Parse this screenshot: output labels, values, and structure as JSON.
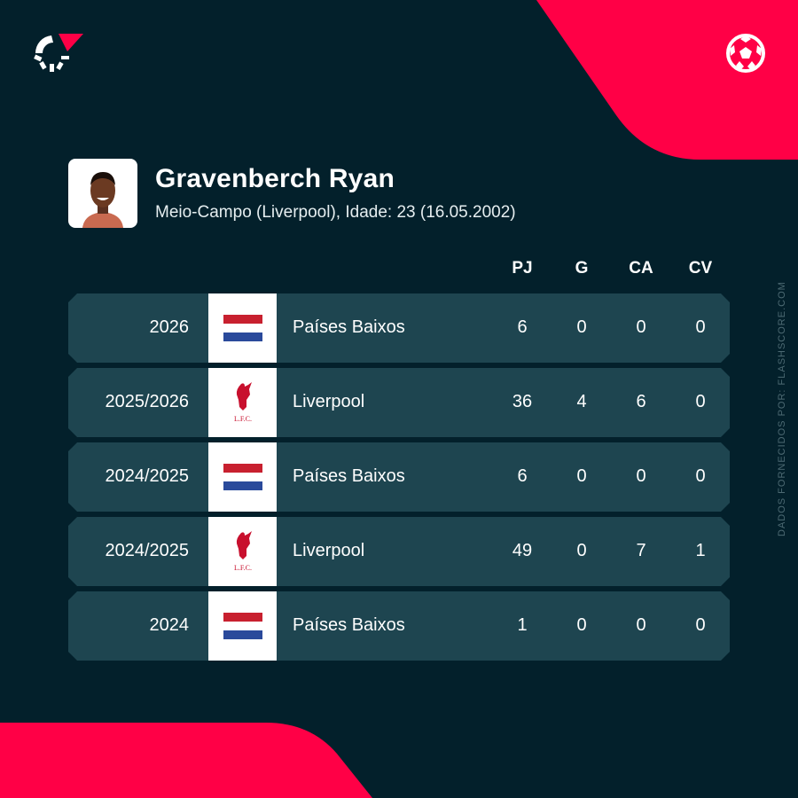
{
  "brand": {
    "accent": "#ff0046",
    "background": "#03202b",
    "row": "#1e4550"
  },
  "player": {
    "name": "Gravenberch Ryan",
    "subtitle": "Meio-Campo (Liverpool), Idade: 23 (16.05.2002)"
  },
  "columns": [
    "PJ",
    "G",
    "CA",
    "CV"
  ],
  "rows": [
    {
      "season": "2026",
      "team": "Países Baixos",
      "logo": "netherlands-flag",
      "stats": [
        "6",
        "0",
        "0",
        "0"
      ]
    },
    {
      "season": "2025/2026",
      "team": "Liverpool",
      "logo": "liverpool-crest",
      "stats": [
        "36",
        "4",
        "6",
        "0"
      ]
    },
    {
      "season": "2024/2025",
      "team": "Países Baixos",
      "logo": "netherlands-flag",
      "stats": [
        "6",
        "0",
        "0",
        "0"
      ]
    },
    {
      "season": "2024/2025",
      "team": "Liverpool",
      "logo": "liverpool-crest",
      "stats": [
        "49",
        "0",
        "7",
        "1"
      ]
    },
    {
      "season": "2024",
      "team": "Países Baixos",
      "logo": "netherlands-flag",
      "stats": [
        "1",
        "0",
        "0",
        "0"
      ]
    }
  ],
  "crest_text": "L.F.C.",
  "source": "DADOS FORNECIDOS POR: FLASHSCORE.COM"
}
